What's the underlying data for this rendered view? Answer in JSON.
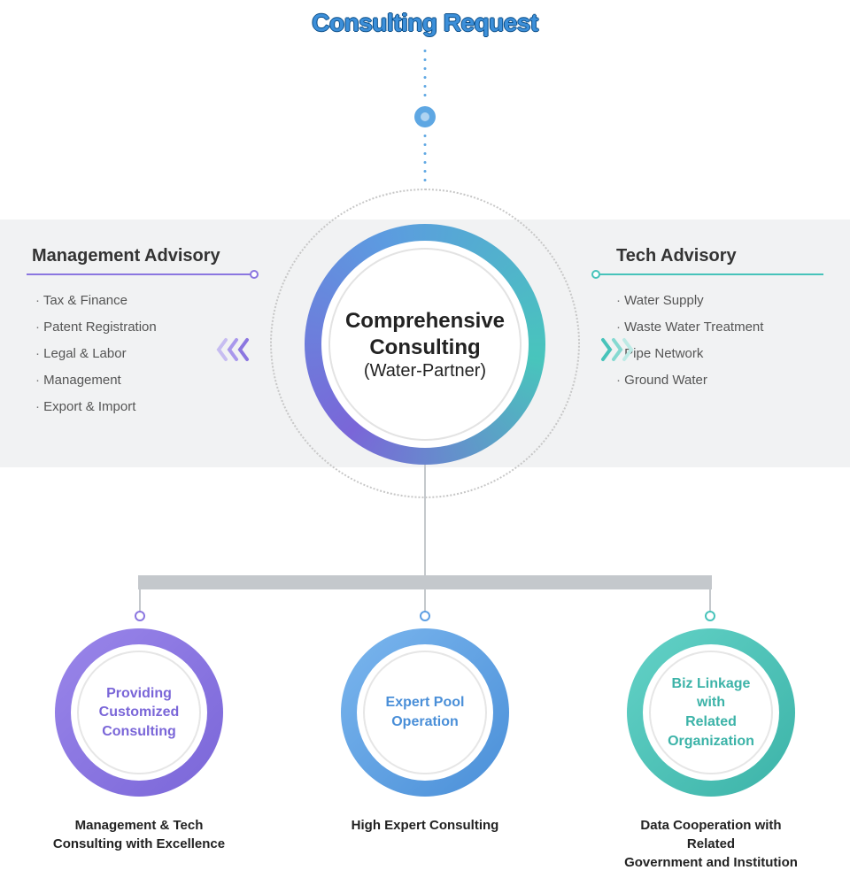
{
  "title": "Consulting Request",
  "center": {
    "line1": "Comprehensive",
    "line2": "Consulting",
    "line3": "(Water-Partner)"
  },
  "colors": {
    "purple": "#8b76e0",
    "blue": "#5e9fe3",
    "teal": "#47c3ba",
    "titleFill": "#3c8fd9",
    "titleStroke": "#084b85",
    "band": "#f1f2f3",
    "connector": "#c4c8cc"
  },
  "management": {
    "heading": "Management Advisory",
    "items": [
      "Tax & Finance",
      "Patent Registration",
      "Legal & Labor",
      "Management",
      "Export & Import"
    ]
  },
  "tech": {
    "heading": "Tech Advisory",
    "items": [
      "Water Supply",
      "Waste Water Treatment",
      "Pipe Network",
      "Ground Water"
    ]
  },
  "bottom": [
    {
      "ring": "Providing\nCustomized\nConsulting",
      "caption": "Management & Tech\nConsulting with Excellence"
    },
    {
      "ring": "Expert Pool\nOperation",
      "caption": "High Expert Consulting"
    },
    {
      "ring": "Biz Linkage with\nRelated\nOrganization",
      "caption": "Data Cooperation with Related\nGovernment and Institution"
    }
  ]
}
